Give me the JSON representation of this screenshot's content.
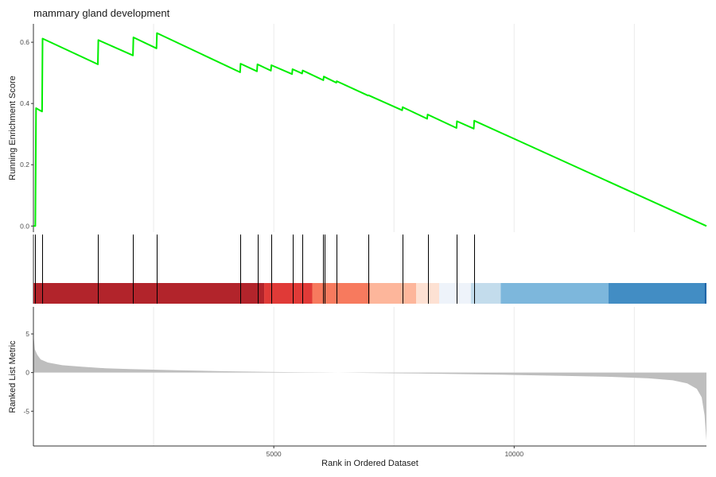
{
  "chart_data": {
    "type": "line",
    "title": "mammary gland development",
    "xlabel": "Rank in Ordered Dataset",
    "xlim": [
      0,
      14000
    ],
    "x_ticks": [
      5000,
      10000
    ],
    "panels": {
      "enrichment": {
        "ylabel": "Running Enrichment Score",
        "ylim": [
          -0.02,
          0.66
        ],
        "y_ticks": [
          0.0,
          0.2,
          0.4,
          0.6
        ],
        "color": "#00ee00",
        "points": [
          [
            0,
            0.0
          ],
          [
            40,
            0.0
          ],
          [
            55,
            0.385
          ],
          [
            130,
            0.378
          ],
          [
            180,
            0.374
          ],
          [
            190,
            0.612
          ],
          [
            1340,
            0.528
          ],
          [
            1350,
            0.607
          ],
          [
            2070,
            0.557
          ],
          [
            2080,
            0.616
          ],
          [
            2560,
            0.58
          ],
          [
            2570,
            0.63
          ],
          [
            4300,
            0.502
          ],
          [
            4310,
            0.53
          ],
          [
            4650,
            0.505
          ],
          [
            4660,
            0.528
          ],
          [
            4940,
            0.507
          ],
          [
            4950,
            0.525
          ],
          [
            5380,
            0.496
          ],
          [
            5390,
            0.512
          ],
          [
            5590,
            0.498
          ],
          [
            5600,
            0.508
          ],
          [
            6030,
            0.476
          ],
          [
            6040,
            0.488
          ],
          [
            6300,
            0.468
          ],
          [
            6310,
            0.473
          ],
          [
            6960,
            0.426
          ],
          [
            6970,
            0.427
          ],
          [
            7670,
            0.378
          ],
          [
            7680,
            0.388
          ],
          [
            8190,
            0.35
          ],
          [
            8200,
            0.364
          ],
          [
            8800,
            0.32
          ],
          [
            8810,
            0.342
          ],
          [
            9160,
            0.318
          ],
          [
            9170,
            0.344
          ],
          [
            14000,
            0.0
          ]
        ]
      },
      "hits": {
        "positions": [
          40,
          190,
          1340,
          2070,
          2560,
          4310,
          4660,
          4950,
          5390,
          5600,
          6030,
          6060,
          6310,
          6970,
          7680,
          8200,
          8810,
          9170
        ]
      },
      "colorbar": {
        "segments": [
          {
            "from": 0,
            "to": 4800,
            "color": "#b2242b"
          },
          {
            "from": 4800,
            "to": 5800,
            "color": "#e03a37"
          },
          {
            "from": 5800,
            "to": 7000,
            "color": "#f77a5e"
          },
          {
            "from": 7000,
            "to": 7960,
            "color": "#fdb69b"
          },
          {
            "from": 7960,
            "to": 8440,
            "color": "#fde1d3"
          },
          {
            "from": 8440,
            "to": 9100,
            "color": "#eef3fa"
          },
          {
            "from": 9100,
            "to": 9720,
            "color": "#c3dcec"
          },
          {
            "from": 9720,
            "to": 11960,
            "color": "#7db7dc"
          },
          {
            "from": 11960,
            "to": 13960,
            "color": "#428dc4"
          },
          {
            "from": 13960,
            "to": 14000,
            "color": "#1f66a8"
          }
        ]
      },
      "ranked": {
        "ylabel": "Ranked List Metric",
        "ylim": [
          -9.5,
          8.5
        ],
        "y_ticks": [
          -5,
          0,
          5
        ],
        "color": "#bebebe",
        "points": [
          [
            0,
            5.0
          ],
          [
            30,
            3.0
          ],
          [
            80,
            2.3
          ],
          [
            150,
            1.7
          ],
          [
            300,
            1.3
          ],
          [
            600,
            0.95
          ],
          [
            1000,
            0.75
          ],
          [
            1500,
            0.55
          ],
          [
            2000,
            0.45
          ],
          [
            3000,
            0.3
          ],
          [
            4000,
            0.17
          ],
          [
            5000,
            0.08
          ],
          [
            6000,
            0.02
          ],
          [
            7000,
            -0.05
          ],
          [
            8000,
            -0.12
          ],
          [
            9000,
            -0.2
          ],
          [
            10000,
            -0.3
          ],
          [
            11000,
            -0.42
          ],
          [
            12000,
            -0.55
          ],
          [
            12800,
            -0.75
          ],
          [
            13300,
            -1.0
          ],
          [
            13600,
            -1.4
          ],
          [
            13800,
            -2.1
          ],
          [
            13900,
            -3.2
          ],
          [
            13960,
            -5.5
          ],
          [
            14000,
            -8.8
          ]
        ]
      }
    }
  }
}
